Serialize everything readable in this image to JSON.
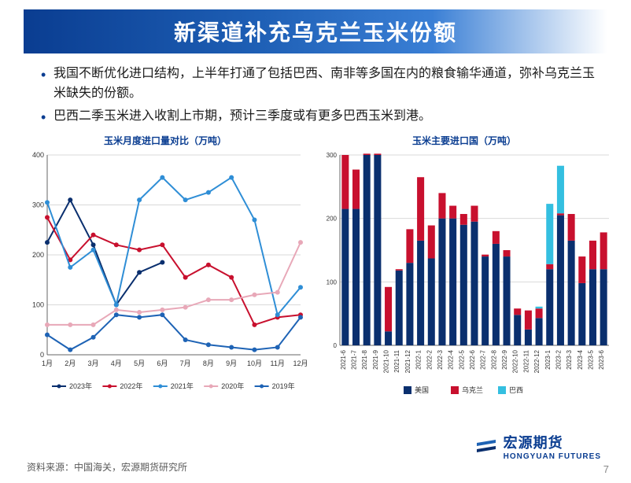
{
  "title": "新渠道补充乌克兰玉米份额",
  "bullets": [
    "我国不断优化进口结构，上半年打通了包括巴西、南非等多国在内的粮食输华通道，弥补乌克兰玉米缺失的份额。",
    "巴西二季玉米进入收割上市期，预计三季度或有更多巴西玉米到港。"
  ],
  "source": "资料来源：中国海关，宏源期货研究所",
  "page_number": "7",
  "logo": {
    "cn": "宏源期货",
    "en": "HONGYUAN FUTURES"
  },
  "line_chart": {
    "title": "玉米月度进口量对比（万吨）",
    "type": "line",
    "categories": [
      "1月",
      "2月",
      "3月",
      "4月",
      "5月",
      "6月",
      "7月",
      "8月",
      "9月",
      "10月",
      "11月",
      "12月"
    ],
    "ylim": [
      0,
      400
    ],
    "ytick_step": 100,
    "axis_color": "#666666",
    "grid_color": "#d9d9d9",
    "background_color": "#ffffff",
    "label_fontsize": 9,
    "tick_fontsize": 9,
    "legend_fontsize": 9,
    "line_width": 2,
    "marker_size": 4,
    "series": [
      {
        "name": "2023年",
        "color": "#0a2f6e",
        "marker": "circle",
        "values": [
          225,
          310,
          220,
          100,
          165,
          185,
          null,
          null,
          null,
          null,
          null,
          null
        ]
      },
      {
        "name": "2022年",
        "color": "#c8102e",
        "marker": "circle",
        "values": [
          275,
          190,
          240,
          220,
          210,
          220,
          155,
          180,
          155,
          60,
          75,
          80
        ]
      },
      {
        "name": "2021年",
        "color": "#2f8ed6",
        "marker": "circle",
        "values": [
          305,
          175,
          210,
          100,
          310,
          355,
          310,
          325,
          355,
          270,
          80,
          135
        ]
      },
      {
        "name": "2020年",
        "color": "#e8a8b8",
        "marker": "circle",
        "values": [
          60,
          60,
          60,
          90,
          85,
          90,
          95,
          110,
          110,
          120,
          125,
          225
        ]
      },
      {
        "name": "2019年",
        "color": "#1e63b5",
        "marker": "circle",
        "values": [
          40,
          10,
          35,
          80,
          75,
          80,
          30,
          20,
          15,
          10,
          15,
          75
        ]
      }
    ]
  },
  "bar_chart": {
    "title": "玉米主要进口国（万吨）",
    "type": "stacked-bar",
    "categories": [
      "2021-6",
      "2021-7",
      "2021-8",
      "2021-9",
      "2021-10",
      "2021-11",
      "2021-12",
      "2022-1",
      "2022-2",
      "2022-3",
      "2022-4",
      "2022-5",
      "2022-6",
      "2022-7",
      "2022-8",
      "2022-9",
      "2022-10",
      "2022-11",
      "2022-12",
      "2023-1",
      "2023-2",
      "2023-3",
      "2023-4",
      "2023-5",
      "2023-6"
    ],
    "ylim": [
      0,
      300
    ],
    "ytick_step": 100,
    "axis_color": "#666666",
    "grid_color": "#d9d9d9",
    "background_color": "#ffffff",
    "label_fontsize": 9,
    "tick_fontsize": 8,
    "legend_fontsize": 9,
    "bar_width": 0.66,
    "series": [
      {
        "name": "美国",
        "color": "#0a2f6e",
        "values": [
          215,
          215,
          300,
          300,
          22,
          118,
          130,
          165,
          137,
          200,
          200,
          190,
          195,
          140,
          160,
          140,
          48,
          25,
          43,
          120,
          205,
          165,
          98,
          120,
          120
        ]
      },
      {
        "name": "乌克兰",
        "color": "#c8102e",
        "values": [
          85,
          62,
          2,
          2,
          70,
          2,
          53,
          100,
          52,
          40,
          20,
          17,
          25,
          3,
          20,
          10,
          10,
          30,
          15,
          8,
          3,
          42,
          42,
          45,
          58
        ]
      },
      {
        "name": "巴西",
        "color": "#34bfe0",
        "values": [
          0,
          0,
          0,
          0,
          0,
          0,
          0,
          0,
          0,
          0,
          0,
          0,
          0,
          0,
          0,
          0,
          0,
          0,
          3,
          95,
          75,
          0,
          0,
          0,
          0
        ]
      }
    ]
  }
}
